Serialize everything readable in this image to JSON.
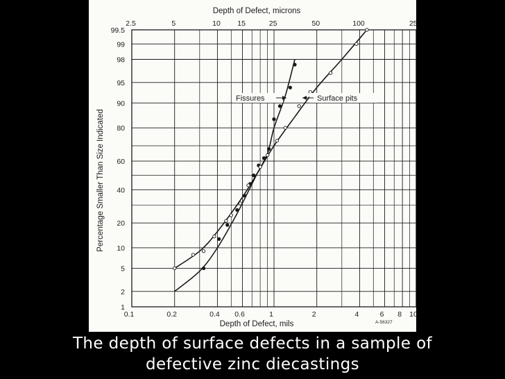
{
  "slide": {
    "caption_line_1": "The depth of surface defects in a sample of",
    "caption_line_2": "defective zinc diecastings"
  },
  "colors": {
    "background": "#000000",
    "figure_paper": "#fbfbf8",
    "ink": "#1a1a1a",
    "caption": "#ffffff"
  },
  "chart_data": {
    "type": "line",
    "title": "",
    "xlabel": "Depth of Defect, mils",
    "ylabel": "Percentage Smaller Than Size Indicated",
    "x2label": "Depth of Defect, microns",
    "figure_code": "A-56327",
    "xscale": "log",
    "yscale": "probability",
    "xlim": [
      0.1,
      10
    ],
    "ylim": [
      1,
      99.5
    ],
    "grid": true,
    "x_ticks": [
      {
        "v": 0.1,
        "label": "0.1"
      },
      {
        "v": 0.2,
        "label": "0.2"
      },
      {
        "v": 0.4,
        "label": "0.4"
      },
      {
        "v": 0.6,
        "label": "0.6"
      },
      {
        "v": 1,
        "label": "1"
      },
      {
        "v": 2,
        "label": "2"
      },
      {
        "v": 4,
        "label": "4"
      },
      {
        "v": 6,
        "label": "6"
      },
      {
        "v": 8,
        "label": "8"
      },
      {
        "v": 10,
        "label": "10"
      }
    ],
    "x_minor_ticks": [
      0.3,
      0.5,
      0.7,
      0.8,
      0.9,
      3,
      5,
      7,
      9
    ],
    "x2_ticks": [
      {
        "v": 2.5,
        "label": "2.5"
      },
      {
        "v": 5,
        "label": "5"
      },
      {
        "v": 10,
        "label": "10"
      },
      {
        "v": 15,
        "label": "15"
      },
      {
        "v": 25,
        "label": "25"
      },
      {
        "v": 50,
        "label": "50"
      },
      {
        "v": 100,
        "label": "100"
      },
      {
        "v": 250,
        "label": "250"
      }
    ],
    "y_ticks": [
      {
        "v": 1,
        "label": "1"
      },
      {
        "v": 2,
        "label": "2"
      },
      {
        "v": 5,
        "label": "5"
      },
      {
        "v": 10,
        "label": "10"
      },
      {
        "v": 20,
        "label": "20"
      },
      {
        "v": 40,
        "label": "40"
      },
      {
        "v": 60,
        "label": "60"
      },
      {
        "v": 80,
        "label": "80"
      },
      {
        "v": 90,
        "label": "90"
      },
      {
        "v": 95,
        "label": "95"
      },
      {
        "v": 98,
        "label": "98"
      },
      {
        "v": 99,
        "label": "99"
      },
      {
        "v": 99.5,
        "label": "99.5"
      }
    ],
    "y_minor_grid": [
      30,
      50,
      70
    ],
    "series": [
      {
        "name": "Fissures",
        "curve": [
          [
            0.2,
            2
          ],
          [
            0.3,
            4.5
          ],
          [
            0.4,
            10
          ],
          [
            0.55,
            25
          ],
          [
            0.75,
            50
          ],
          [
            0.9,
            65
          ],
          [
            1.0,
            80
          ],
          [
            1.2,
            92
          ],
          [
            1.4,
            98
          ]
        ],
        "points": [
          [
            0.32,
            5
          ],
          [
            0.41,
            13
          ],
          [
            0.47,
            19
          ],
          [
            0.55,
            27
          ],
          [
            0.62,
            36
          ],
          [
            0.68,
            44
          ],
          [
            0.72,
            50
          ],
          [
            0.78,
            57
          ],
          [
            0.85,
            62
          ],
          [
            0.92,
            68
          ],
          [
            1.0,
            84
          ],
          [
            1.1,
            89
          ],
          [
            1.3,
            94
          ],
          [
            1.4,
            97.5
          ]
        ]
      },
      {
        "name": "Surface pits",
        "curve": [
          [
            0.2,
            5
          ],
          [
            0.3,
            9
          ],
          [
            0.4,
            16
          ],
          [
            0.6,
            35
          ],
          [
            0.8,
            55
          ],
          [
            1.0,
            70
          ],
          [
            1.4,
            85
          ],
          [
            2,
            94
          ],
          [
            3,
            98
          ],
          [
            4.5,
            99.5
          ]
        ],
        "points": [
          [
            0.2,
            5
          ],
          [
            0.27,
            8
          ],
          [
            0.32,
            9
          ],
          [
            0.38,
            14
          ],
          [
            0.46,
            21
          ],
          [
            0.5,
            24
          ],
          [
            0.58,
            31
          ],
          [
            0.66,
            43
          ],
          [
            0.8,
            56
          ],
          [
            0.9,
            64
          ],
          [
            1.05,
            73
          ],
          [
            1.2,
            80
          ],
          [
            1.5,
            89
          ],
          [
            1.8,
            93
          ],
          [
            2.5,
            96.5
          ],
          [
            3.8,
            99
          ],
          [
            4.5,
            99.5
          ]
        ]
      }
    ],
    "annotations": [
      {
        "text": "Fissures",
        "target": "Fissures"
      },
      {
        "text": "Surface pits",
        "target": "Surface pits"
      }
    ]
  }
}
